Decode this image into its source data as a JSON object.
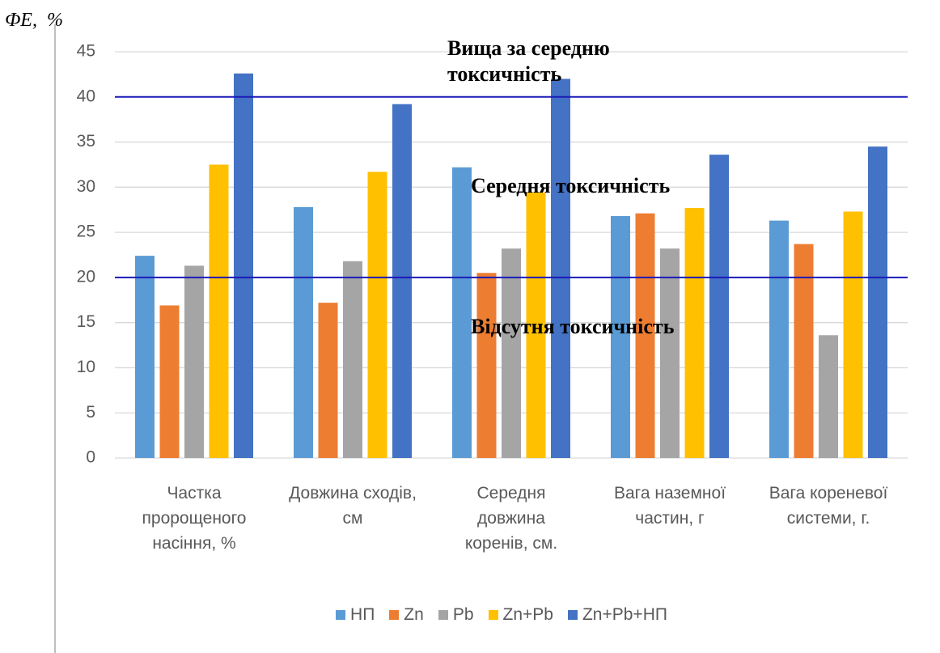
{
  "chart_data": {
    "type": "bar",
    "y_label": "ФЕ,  %",
    "categories": [
      "Частка\nпророщеного\nнасіння, %",
      "Довжина сходів,\nсм",
      "Середня\nдовжина\nкоренів, см.",
      "Вага наземної\nчастин, г",
      "Вага кореневої\nсистеми, г."
    ],
    "series": [
      {
        "name": "НП",
        "color": "#5b9bd5",
        "values": [
          22.4,
          27.8,
          32.2,
          26.8,
          26.3
        ]
      },
      {
        "name": "Zn",
        "color": "#ed7d31",
        "values": [
          16.9,
          17.2,
          20.5,
          27.1,
          23.7
        ]
      },
      {
        "name": "Pb",
        "color": "#a5a5a5",
        "values": [
          21.3,
          21.8,
          23.2,
          23.2,
          13.6
        ]
      },
      {
        "name": "Zn+Pb",
        "color": "#ffc000",
        "values": [
          32.5,
          31.7,
          29.4,
          27.7,
          27.3
        ]
      },
      {
        "name": "Zn+Pb+НП",
        "color": "#4472c4",
        "values": [
          42.6,
          39.2,
          42.0,
          33.6,
          34.5
        ]
      }
    ],
    "ylim": [
      0,
      45
    ],
    "yticks": [
      0,
      5,
      10,
      15,
      20,
      25,
      30,
      35,
      40,
      45
    ],
    "grid": true,
    "reference_lines": [
      {
        "value": 20,
        "color": "#1a1ab8"
      },
      {
        "value": 40,
        "color": "#1a1ab8"
      }
    ],
    "annotations": [
      "Вища за середню\nтоксичність",
      "Середня токсичність",
      "Відсутня токсичність"
    ],
    "legend": "bottom"
  }
}
